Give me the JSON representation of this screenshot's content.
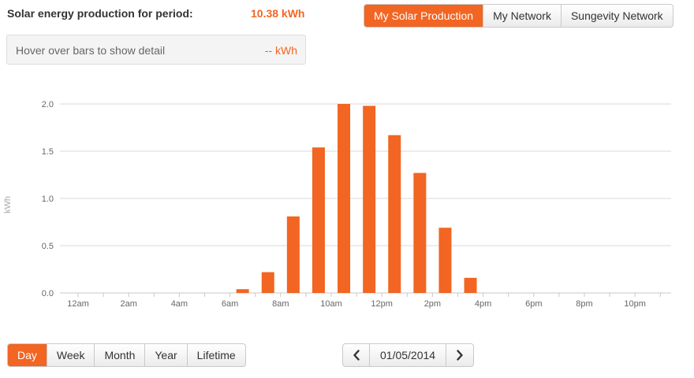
{
  "summary": {
    "label": "Solar energy production for period:",
    "total": "10.38 kWh"
  },
  "hover": {
    "text": "Hover over bars to show detail",
    "value": "-- kWh"
  },
  "nav_tabs": [
    {
      "label": "My Solar Production",
      "active": true
    },
    {
      "label": "My Network",
      "active": false
    },
    {
      "label": "Sungevity Network",
      "active": false
    }
  ],
  "range_tabs": [
    {
      "label": "Day",
      "active": true
    },
    {
      "label": "Week",
      "active": false
    },
    {
      "label": "Month",
      "active": false
    },
    {
      "label": "Year",
      "active": false
    },
    {
      "label": "Lifetime",
      "active": false
    }
  ],
  "date_nav": {
    "prev_icon": "chevron-left-icon",
    "next_icon": "chevron-right-icon",
    "date": "01/05/2014"
  },
  "colors": {
    "accent": "#f26522",
    "grid": "#d9d9d9"
  },
  "chart_data": {
    "type": "bar",
    "title": "",
    "xlabel": "",
    "ylabel": "kWh",
    "ylim": [
      0,
      2.0
    ],
    "yticks": [
      "0.0",
      "0.5",
      "1.0",
      "1.5",
      "2.0"
    ],
    "grid": true,
    "legend": "none",
    "x_tick_labels": [
      "12am",
      "2am",
      "4am",
      "6am",
      "8am",
      "10am",
      "12pm",
      "2pm",
      "4pm",
      "6pm",
      "8pm",
      "10pm"
    ],
    "categories": [
      "12am",
      "1am",
      "2am",
      "3am",
      "4am",
      "5am",
      "6am",
      "7am",
      "8am",
      "9am",
      "10am",
      "11am",
      "12pm",
      "1pm",
      "2pm",
      "3pm",
      "4pm",
      "5pm",
      "6pm",
      "7pm",
      "8pm",
      "9pm",
      "10pm",
      "11pm"
    ],
    "series": [
      {
        "values": [
          0,
          0,
          0,
          0,
          0,
          0,
          0,
          0.04,
          0.22,
          0.81,
          1.54,
          2.0,
          1.98,
          1.67,
          1.27,
          0.69,
          0.16,
          0,
          0,
          0,
          0,
          0,
          0,
          0
        ]
      }
    ]
  }
}
